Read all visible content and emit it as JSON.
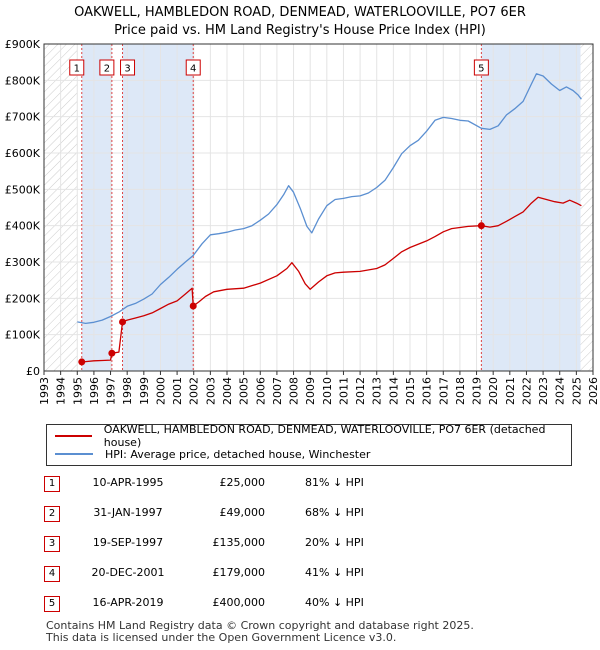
{
  "header": {
    "line1": "OAKWELL, HAMBLEDON ROAD, DENMEAD, WATERLOOVILLE, PO7 6ER",
    "line2": "Price paid vs. HM Land Registry's House Price Index (HPI)"
  },
  "colors": {
    "property": "#cc0000",
    "hpi": "#5b8fd1",
    "shade": "#dde8f7",
    "hatch": "#cccccc",
    "vline": "#dd4444"
  },
  "chart_data": {
    "type": "line",
    "title": "Price paid vs. HM Land Registry's House Price Index (HPI)",
    "xlim": [
      1993,
      2026
    ],
    "ylim": [
      0,
      900000
    ],
    "x_ticks": [
      "1993",
      "1994",
      "1995",
      "1996",
      "1997",
      "1998",
      "1999",
      "2000",
      "2001",
      "2002",
      "2003",
      "2004",
      "2005",
      "2006",
      "2007",
      "2008",
      "2009",
      "2010",
      "2011",
      "2012",
      "2013",
      "2014",
      "2015",
      "2016",
      "2017",
      "2018",
      "2019",
      "2020",
      "2021",
      "2022",
      "2023",
      "2024",
      "2025",
      "2026"
    ],
    "y_ticks": [
      {
        "value": 0,
        "label": "£0"
      },
      {
        "value": 100000,
        "label": "£100K"
      },
      {
        "value": 200000,
        "label": "£200K"
      },
      {
        "value": 300000,
        "label": "£300K"
      },
      {
        "value": 400000,
        "label": "£400K"
      },
      {
        "value": 500000,
        "label": "£500K"
      },
      {
        "value": 600000,
        "label": "£600K"
      },
      {
        "value": 700000,
        "label": "£700K"
      },
      {
        "value": 800000,
        "label": "£800K"
      },
      {
        "value": 900000,
        "label": "£900K"
      }
    ],
    "hatched_before": 1995.0,
    "hatched_after": 2025.25,
    "shaded_ranges": [
      [
        1995.27,
        1997.08
      ],
      [
        1997.72,
        2001.97
      ],
      [
        2019.29,
        2025.25
      ]
    ],
    "series": [
      {
        "name": "OAKWELL, HAMBLEDON ROAD, DENMEAD, WATERLOOVILLE, PO7 6ER (detached house)",
        "points": [
          [
            1995.27,
            25000
          ],
          [
            1995.5,
            26000
          ],
          [
            1996.0,
            28000
          ],
          [
            1996.5,
            29000
          ],
          [
            1997.0,
            30000
          ],
          [
            1997.08,
            49000
          ],
          [
            1997.5,
            52000
          ],
          [
            1997.72,
            135000
          ],
          [
            1998.0,
            140000
          ],
          [
            1998.5,
            146000
          ],
          [
            1999.0,
            152000
          ],
          [
            1999.5,
            160000
          ],
          [
            2000.0,
            172000
          ],
          [
            2000.5,
            184000
          ],
          [
            2001.0,
            193000
          ],
          [
            2001.5,
            212000
          ],
          [
            2001.9,
            228000
          ],
          [
            2001.97,
            179000
          ],
          [
            2002.3,
            190000
          ],
          [
            2002.7,
            205000
          ],
          [
            2003.2,
            218000
          ],
          [
            2004.0,
            225000
          ],
          [
            2005.0,
            228000
          ],
          [
            2006.0,
            242000
          ],
          [
            2007.0,
            262000
          ],
          [
            2007.6,
            282000
          ],
          [
            2007.9,
            298000
          ],
          [
            2008.3,
            275000
          ],
          [
            2008.7,
            240000
          ],
          [
            2009.0,
            225000
          ],
          [
            2009.5,
            245000
          ],
          [
            2010.0,
            262000
          ],
          [
            2010.5,
            270000
          ],
          [
            2011.0,
            272000
          ],
          [
            2012.0,
            274000
          ],
          [
            2013.0,
            282000
          ],
          [
            2013.5,
            292000
          ],
          [
            2014.0,
            310000
          ],
          [
            2014.5,
            328000
          ],
          [
            2015.0,
            340000
          ],
          [
            2016.0,
            358000
          ],
          [
            2016.5,
            370000
          ],
          [
            2017.0,
            383000
          ],
          [
            2017.5,
            392000
          ],
          [
            2018.0,
            395000
          ],
          [
            2018.5,
            398000
          ],
          [
            2019.29,
            400000
          ],
          [
            2019.8,
            396000
          ],
          [
            2020.3,
            400000
          ],
          [
            2020.8,
            412000
          ],
          [
            2021.3,
            425000
          ],
          [
            2021.8,
            438000
          ],
          [
            2022.3,
            462000
          ],
          [
            2022.7,
            478000
          ],
          [
            2023.2,
            472000
          ],
          [
            2023.7,
            466000
          ],
          [
            2024.2,
            462000
          ],
          [
            2024.6,
            470000
          ],
          [
            2025.0,
            462000
          ],
          [
            2025.3,
            455000
          ]
        ]
      },
      {
        "name": "HPI: Average price, detached house, Winchester",
        "points": [
          [
            1995.0,
            135000
          ],
          [
            1995.5,
            131000
          ],
          [
            1996.0,
            134000
          ],
          [
            1996.5,
            140000
          ],
          [
            1997.0,
            150000
          ],
          [
            1997.5,
            162000
          ],
          [
            1998.0,
            178000
          ],
          [
            1998.5,
            186000
          ],
          [
            1999.0,
            198000
          ],
          [
            1999.5,
            212000
          ],
          [
            2000.0,
            238000
          ],
          [
            2000.5,
            258000
          ],
          [
            2001.0,
            280000
          ],
          [
            2001.5,
            300000
          ],
          [
            2001.97,
            318000
          ],
          [
            2002.5,
            350000
          ],
          [
            2003.0,
            375000
          ],
          [
            2003.5,
            378000
          ],
          [
            2004.0,
            382000
          ],
          [
            2004.5,
            388000
          ],
          [
            2005.0,
            392000
          ],
          [
            2005.5,
            400000
          ],
          [
            2006.0,
            415000
          ],
          [
            2006.5,
            432000
          ],
          [
            2007.0,
            458000
          ],
          [
            2007.4,
            485000
          ],
          [
            2007.7,
            510000
          ],
          [
            2008.0,
            492000
          ],
          [
            2008.4,
            448000
          ],
          [
            2008.8,
            398000
          ],
          [
            2009.1,
            380000
          ],
          [
            2009.5,
            418000
          ],
          [
            2010.0,
            455000
          ],
          [
            2010.5,
            472000
          ],
          [
            2011.0,
            475000
          ],
          [
            2011.5,
            480000
          ],
          [
            2012.0,
            482000
          ],
          [
            2012.5,
            490000
          ],
          [
            2013.0,
            505000
          ],
          [
            2013.5,
            525000
          ],
          [
            2014.0,
            560000
          ],
          [
            2014.5,
            598000
          ],
          [
            2015.0,
            620000
          ],
          [
            2015.5,
            635000
          ],
          [
            2016.0,
            660000
          ],
          [
            2016.5,
            690000
          ],
          [
            2017.0,
            698000
          ],
          [
            2017.5,
            695000
          ],
          [
            2018.0,
            690000
          ],
          [
            2018.5,
            688000
          ],
          [
            2019.29,
            668000
          ],
          [
            2019.8,
            665000
          ],
          [
            2020.3,
            675000
          ],
          [
            2020.8,
            705000
          ],
          [
            2021.3,
            722000
          ],
          [
            2021.8,
            742000
          ],
          [
            2022.3,
            790000
          ],
          [
            2022.6,
            818000
          ],
          [
            2023.0,
            812000
          ],
          [
            2023.5,
            790000
          ],
          [
            2024.0,
            772000
          ],
          [
            2024.4,
            782000
          ],
          [
            2024.8,
            772000
          ],
          [
            2025.1,
            760000
          ],
          [
            2025.3,
            748000
          ]
        ]
      }
    ],
    "sales": [
      {
        "n": "1",
        "x": 1995.27,
        "price": 25000
      },
      {
        "n": "2",
        "x": 1997.08,
        "price": 49000
      },
      {
        "n": "3",
        "x": 1997.72,
        "price": 135000
      },
      {
        "n": "4",
        "x": 2001.97,
        "price": 179000
      },
      {
        "n": "5",
        "x": 2019.29,
        "price": 400000
      }
    ]
  },
  "legend": {
    "property": "OAKWELL, HAMBLEDON ROAD, DENMEAD, WATERLOOVILLE, PO7 6ER (detached house)",
    "hpi": "HPI: Average price, detached house, Winchester"
  },
  "table": [
    {
      "n": "1",
      "date": "10-APR-1995",
      "price": "£25,000",
      "hpi": "81% ↓ HPI"
    },
    {
      "n": "2",
      "date": "31-JAN-1997",
      "price": "£49,000",
      "hpi": "68% ↓ HPI"
    },
    {
      "n": "3",
      "date": "19-SEP-1997",
      "price": "£135,000",
      "hpi": "20% ↓ HPI"
    },
    {
      "n": "4",
      "date": "20-DEC-2001",
      "price": "£179,000",
      "hpi": "41% ↓ HPI"
    },
    {
      "n": "5",
      "date": "16-APR-2019",
      "price": "£400,000",
      "hpi": "40% ↓ HPI"
    }
  ],
  "footer": {
    "line1": "Contains HM Land Registry data © Crown copyright and database right 2025.",
    "line2": "This data is licensed under the Open Government Licence v3.0."
  }
}
